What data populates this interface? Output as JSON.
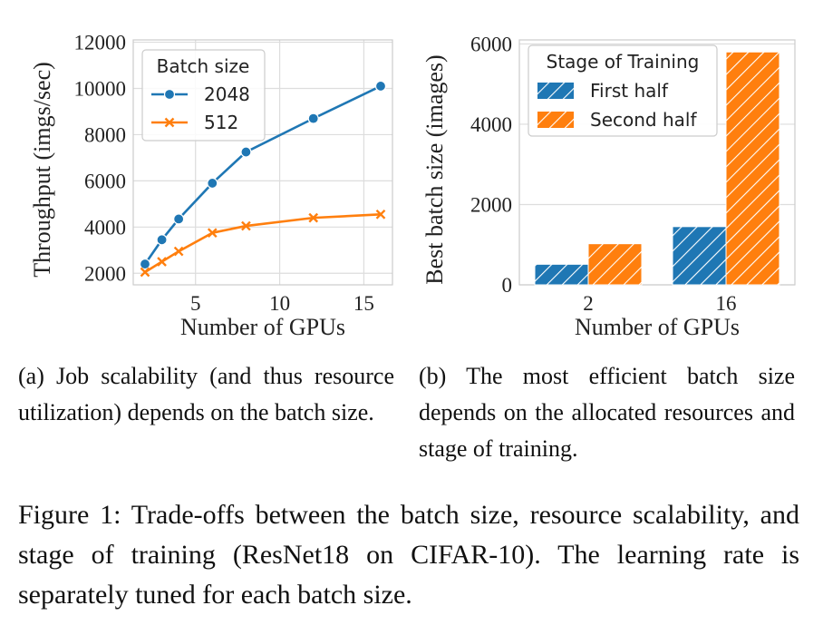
{
  "chart_data": [
    {
      "type": "line",
      "xlabel": "Number of GPUs",
      "ylabel": "Throughput (imgs/sec)",
      "xlim": [
        1.3,
        16.7
      ],
      "ylim": [
        1500,
        12100
      ],
      "xticks": [
        5,
        10,
        15
      ],
      "yticks": [
        2000,
        4000,
        6000,
        8000,
        10000,
        12000
      ],
      "grid": true,
      "legend": {
        "title": "Batch size",
        "placement": "top-left"
      },
      "series": [
        {
          "name": "2048",
          "marker": "circle",
          "color": "#1f77b4",
          "x": [
            2,
            3,
            4,
            6,
            8,
            12,
            16
          ],
          "y": [
            2400,
            3450,
            4350,
            5900,
            7250,
            8700,
            10100
          ]
        },
        {
          "name": "512",
          "marker": "x",
          "color": "#ff7f0e",
          "x": [
            2,
            3,
            4,
            6,
            8,
            12,
            16
          ],
          "y": [
            2050,
            2500,
            2950,
            3750,
            4050,
            4400,
            4550
          ]
        }
      ]
    },
    {
      "type": "bar",
      "xlabel": "Number of GPUs",
      "ylabel": "Best batch size (images)",
      "categories": [
        "2",
        "16"
      ],
      "ylim": [
        0,
        6100
      ],
      "yticks": [
        0,
        2000,
        4000,
        6000
      ],
      "grid": true,
      "legend": {
        "title": "Stage of Training",
        "placement": "top-left"
      },
      "series": [
        {
          "name": "First half",
          "color": "#1f77b4",
          "values": [
            512,
            1450
          ]
        },
        {
          "name": "Second half",
          "color": "#ff7f0e",
          "values": [
            1024,
            5800
          ]
        }
      ]
    }
  ],
  "captions": {
    "a": "(a) Job scalability (and thus resource utilization) depends on the batch size.",
    "b": "(b) The most efficient batch size depends on the allocated resources and stage of training.",
    "figure": "Figure 1: Trade-offs between the batch size, resource scalability, and stage of training (ResNet18 on CIFAR-10). The learning rate is separately tuned for each batch size."
  }
}
